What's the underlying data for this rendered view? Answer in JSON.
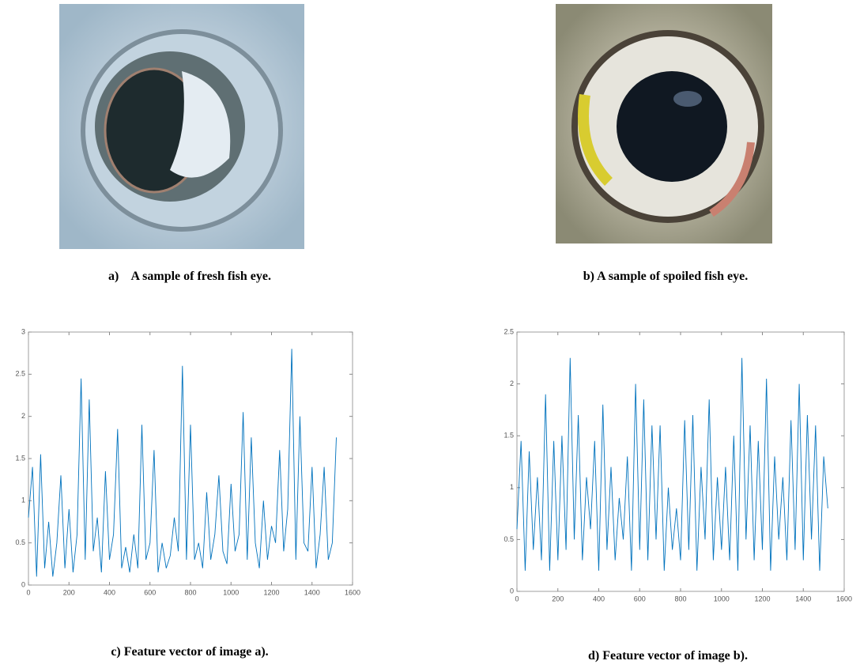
{
  "panels": [
    {
      "caption": "a)    A sample of fresh fish eye."
    },
    {
      "caption": "b) A sample of spoiled fish eye."
    }
  ],
  "chart_data": [
    {
      "type": "line",
      "caption": "c) Feature vector of image a).",
      "color": "#0072bd",
      "x": [
        0,
        20,
        40,
        60,
        80,
        100,
        120,
        140,
        160,
        180,
        200,
        220,
        240,
        260,
        280,
        300,
        320,
        340,
        360,
        380,
        400,
        420,
        440,
        460,
        480,
        500,
        520,
        540,
        560,
        580,
        600,
        620,
        640,
        660,
        680,
        700,
        720,
        740,
        760,
        780,
        800,
        820,
        840,
        860,
        880,
        900,
        920,
        940,
        960,
        980,
        1000,
        1020,
        1040,
        1060,
        1080,
        1100,
        1120,
        1140,
        1160,
        1180,
        1200,
        1220,
        1240,
        1260,
        1280,
        1300,
        1320,
        1340,
        1360,
        1380,
        1400,
        1420,
        1440,
        1460,
        1480,
        1500,
        1520
      ],
      "values": [
        0.8,
        1.4,
        0.1,
        1.55,
        0.2,
        0.75,
        0.1,
        0.5,
        1.3,
        0.2,
        0.9,
        0.15,
        0.6,
        2.45,
        0.3,
        2.2,
        0.4,
        0.8,
        0.15,
        1.35,
        0.3,
        0.6,
        1.85,
        0.2,
        0.45,
        0.15,
        0.6,
        0.2,
        1.9,
        0.3,
        0.5,
        1.6,
        0.15,
        0.5,
        0.2,
        0.35,
        0.8,
        0.4,
        2.6,
        0.3,
        1.9,
        0.3,
        0.5,
        0.2,
        1.1,
        0.3,
        0.6,
        1.3,
        0.4,
        0.25,
        1.2,
        0.4,
        0.6,
        2.05,
        0.3,
        1.75,
        0.5,
        0.2,
        1.0,
        0.3,
        0.7,
        0.5,
        1.6,
        0.4,
        0.9,
        2.8,
        0.3,
        2.0,
        0.5,
        0.4,
        1.4,
        0.2,
        0.6,
        1.4,
        0.3,
        0.5,
        1.75
      ],
      "xlim": [
        0,
        1600
      ],
      "xticks": [
        0,
        200,
        400,
        600,
        800,
        1000,
        1200,
        1400,
        1600
      ],
      "ylim": [
        0,
        3
      ],
      "yticks": [
        0,
        0.5,
        1,
        1.5,
        2,
        2.5,
        3
      ]
    },
    {
      "type": "line",
      "caption": "d) Feature vector of image b).",
      "color": "#0072bd",
      "x": [
        0,
        20,
        40,
        60,
        80,
        100,
        120,
        140,
        160,
        180,
        200,
        220,
        240,
        260,
        280,
        300,
        320,
        340,
        360,
        380,
        400,
        420,
        440,
        460,
        480,
        500,
        520,
        540,
        560,
        580,
        600,
        620,
        640,
        660,
        680,
        700,
        720,
        740,
        760,
        780,
        800,
        820,
        840,
        860,
        880,
        900,
        920,
        940,
        960,
        980,
        1000,
        1020,
        1040,
        1060,
        1080,
        1100,
        1120,
        1140,
        1160,
        1180,
        1200,
        1220,
        1240,
        1260,
        1280,
        1300,
        1320,
        1340,
        1360,
        1380,
        1400,
        1420,
        1440,
        1460,
        1480,
        1500,
        1520
      ],
      "values": [
        0.6,
        1.45,
        0.2,
        1.35,
        0.4,
        1.1,
        0.3,
        1.9,
        0.2,
        1.45,
        0.3,
        1.5,
        0.4,
        2.25,
        0.5,
        1.7,
        0.3,
        1.1,
        0.6,
        1.45,
        0.2,
        1.8,
        0.4,
        1.2,
        0.3,
        0.9,
        0.5,
        1.3,
        0.2,
        2.0,
        0.4,
        1.85,
        0.3,
        1.6,
        0.5,
        1.6,
        0.2,
        1.0,
        0.4,
        0.8,
        0.3,
        1.65,
        0.4,
        1.7,
        0.2,
        1.2,
        0.5,
        1.85,
        0.3,
        1.1,
        0.4,
        1.2,
        0.3,
        1.5,
        0.2,
        2.25,
        0.5,
        1.6,
        0.3,
        1.45,
        0.4,
        2.05,
        0.2,
        1.3,
        0.5,
        1.1,
        0.3,
        1.65,
        0.4,
        2.0,
        0.3,
        1.7,
        0.5,
        1.6,
        0.2,
        1.3,
        0.8
      ],
      "xlim": [
        0,
        1600
      ],
      "xticks": [
        0,
        200,
        400,
        600,
        800,
        1000,
        1200,
        1400,
        1600
      ],
      "ylim": [
        0,
        2.5
      ],
      "yticks": [
        0,
        0.5,
        1,
        1.5,
        2,
        2.5
      ]
    }
  ]
}
